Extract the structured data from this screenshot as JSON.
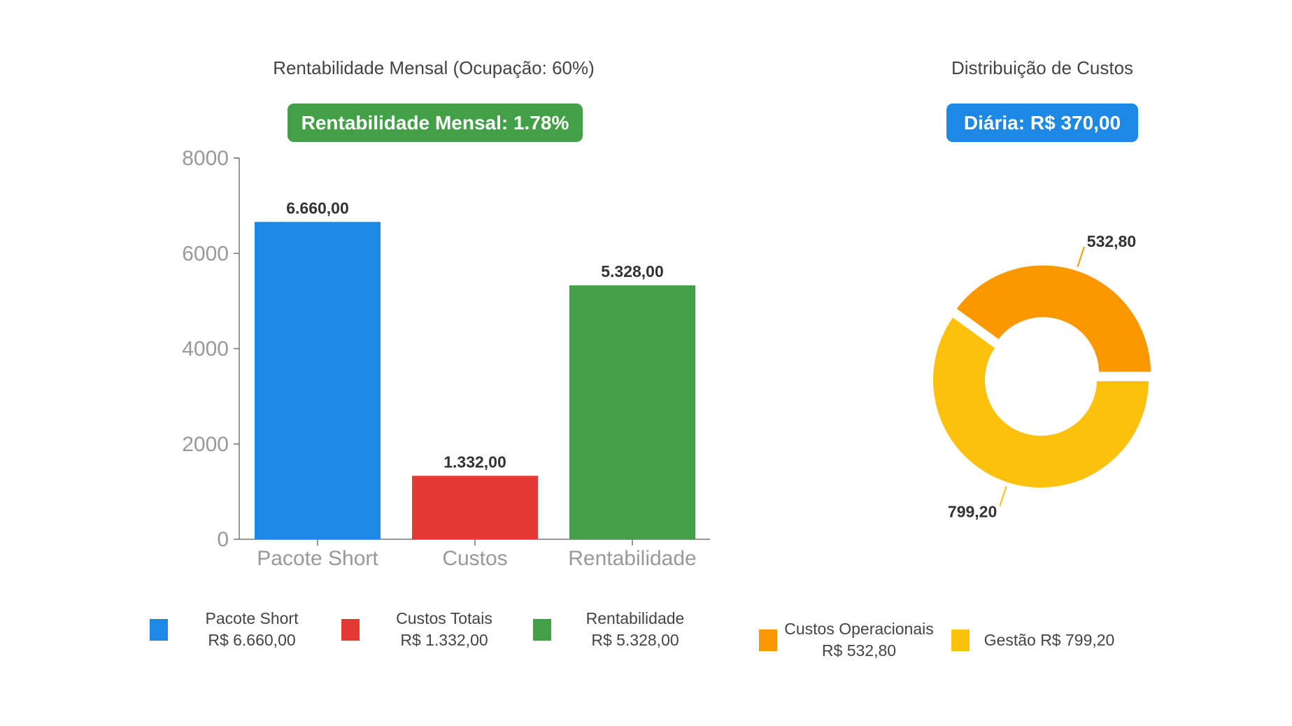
{
  "bar_panel": {
    "title": "Rentabilidade Mensal (Ocupação: 60%)",
    "badge": "Rentabilidade Mensal: 1.78%",
    "badge_color": "#43a047"
  },
  "pie_panel": {
    "title": "Distribuição de Custos",
    "badge": "Diária: R$ 370,00",
    "badge_color": "#1e88e5"
  },
  "chart_data": [
    {
      "type": "bar",
      "title": "Rentabilidade Mensal (Ocupação: 60%)",
      "categories": [
        "Pacote Short",
        "Custos",
        "Rentabilidade"
      ],
      "values": [
        6660,
        1332,
        5328
      ],
      "data_labels": [
        "6.660,00",
        "1.332,00",
        "5.328,00"
      ],
      "colors": [
        "#1e88e5",
        "#e53935",
        "#43a047"
      ],
      "yticks": [
        "0",
        "2000",
        "4000",
        "6000",
        "8000"
      ],
      "ylim": [
        0,
        8000
      ],
      "xlabel": "",
      "ylabel": "",
      "legend": [
        {
          "line1": "Pacote Short",
          "line2": "R$ 6.660,00",
          "color": "#1e88e5"
        },
        {
          "line1": "Custos Totais",
          "line2": "R$ 1.332,00",
          "color": "#e53935"
        },
        {
          "line1": "Rentabilidade",
          "line2": "R$ 5.328,00",
          "color": "#43a047"
        }
      ]
    },
    {
      "type": "pie",
      "title": "Distribuição de Custos",
      "slices": [
        {
          "name": "Custos Operacionais",
          "value": 532.8,
          "label": "532,80",
          "color": "#fb9800"
        },
        {
          "name": "Gestão",
          "value": 799.2,
          "label": "799,20",
          "color": "#fcc10c"
        }
      ],
      "legend": [
        {
          "line1": "Custos Operacionais",
          "line2": "R$ 532,80",
          "color": "#fb9800"
        },
        {
          "line1": "Gestão R$ 799,20",
          "line2": "",
          "color": "#fcc10c"
        }
      ]
    }
  ]
}
